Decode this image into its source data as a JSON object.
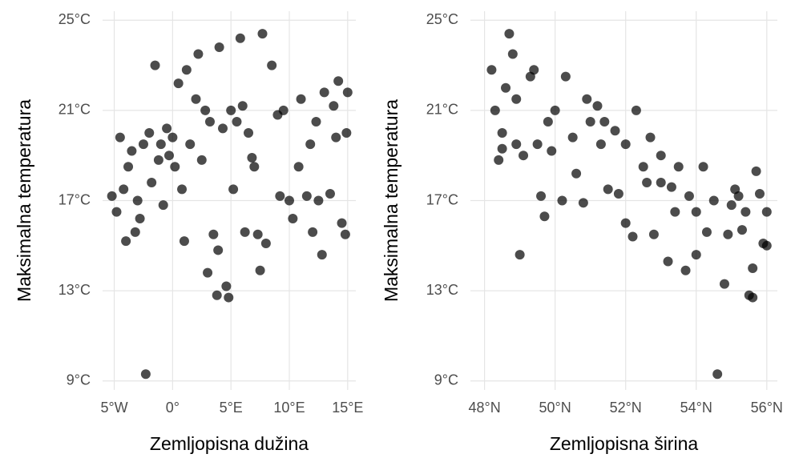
{
  "chart_data": [
    {
      "type": "scatter",
      "x_label": "Zemljopisna dužina",
      "y_label": "Maksimalna temperatura",
      "color": "#000000",
      "alpha": 0.7,
      "grid": true,
      "x": [
        -5.2,
        -4.8,
        -4.5,
        -4.2,
        -4,
        -3.8,
        -3.5,
        -3,
        -2.8,
        -2.5,
        -2.3,
        -2,
        -1.8,
        -1.5,
        -1.2,
        -1,
        -0.8,
        -0.5,
        -0.3,
        0,
        0.2,
        0.5,
        0.8,
        1,
        1.2,
        1.5,
        2,
        2.2,
        2.5,
        3,
        3.2,
        3.5,
        3.8,
        4,
        4.3,
        4.6,
        4.8,
        5,
        5.2,
        5.5,
        5.8,
        6,
        6.2,
        6.5,
        7,
        7.3,
        7.7,
        7.5,
        8,
        8.5,
        9,
        9.2,
        9.5,
        10,
        10.3,
        10.8,
        11,
        11.5,
        12,
        12.3,
        12.8,
        13,
        13.5,
        14,
        14.2,
        14.5,
        14.8,
        14.9,
        15,
        13.8,
        12.5,
        11.8,
        6.8,
        3.9,
        2.8,
        -3.2
      ],
      "y": [
        17.2,
        16.5,
        19.8,
        17.5,
        15.2,
        18.5,
        19.2,
        17,
        16.2,
        19.5,
        9.3,
        20,
        17.8,
        23,
        18.8,
        19.5,
        16.8,
        20.2,
        19,
        19.8,
        18.5,
        22.2,
        17.5,
        15.2,
        22.8,
        19.5,
        21.5,
        23.5,
        18.8,
        13.8,
        20.5,
        15.5,
        12.8,
        23.8,
        20.2,
        13.2,
        12.7,
        21,
        17.5,
        20.5,
        24.2,
        21.2,
        15.6,
        20,
        18.5,
        15.5,
        24.4,
        13.9,
        15.1,
        23,
        20.8,
        17.2,
        21,
        17,
        16.2,
        18.5,
        21.5,
        17.2,
        15.6,
        20.5,
        14.6,
        21.8,
        17.3,
        19.8,
        22.3,
        16,
        15.5,
        20,
        21.8,
        21.2,
        17,
        19.5,
        18.9,
        14.8,
        21,
        15.6
      ],
      "xlim": [
        -6,
        15.7
      ],
      "ylim": [
        8.6,
        25.4
      ],
      "xticks": [
        {
          "value": -5,
          "label": "5°W"
        },
        {
          "value": 0,
          "label": "0°"
        },
        {
          "value": 5,
          "label": "5°E"
        },
        {
          "value": 10,
          "label": "10°E"
        },
        {
          "value": 15,
          "label": "15°E"
        }
      ],
      "yticks": [
        {
          "value": 9,
          "label": "9°C"
        },
        {
          "value": 13,
          "label": "13°C"
        },
        {
          "value": 17,
          "label": "17°C"
        },
        {
          "value": 21,
          "label": "21°C"
        },
        {
          "value": 25,
          "label": "25°C"
        }
      ]
    },
    {
      "type": "scatter",
      "x_label": "Zemljopisna širina",
      "y_label": "Maksimalna temperatura",
      "color": "#000000",
      "alpha": 0.7,
      "grid": true,
      "x": [
        48.2,
        48.3,
        48.4,
        48.5,
        48.6,
        48.7,
        48.8,
        48.9,
        49,
        49.1,
        49.3,
        49.5,
        49.6,
        49.7,
        49.8,
        50,
        50.2,
        50.3,
        50.5,
        50.6,
        50.8,
        51,
        51.2,
        51.3,
        51.5,
        51.7,
        52,
        52,
        52.2,
        52.3,
        52.5,
        52.7,
        52.8,
        53,
        53,
        53.2,
        53.4,
        53.5,
        53.7,
        53.8,
        54,
        54,
        54.2,
        54.3,
        54.5,
        54.6,
        54.8,
        54.9,
        55,
        55.2,
        55.3,
        55.5,
        55.6,
        55.6,
        55.7,
        55.8,
        55.9,
        56,
        56,
        55.4,
        55.1,
        53.3,
        52.6,
        51.8,
        51.4,
        50.9,
        49.9,
        49.4,
        48.9,
        48.5
      ],
      "y": [
        22.8,
        21,
        18.8,
        20,
        22,
        24.4,
        23.5,
        21.5,
        14.6,
        19,
        22.5,
        19.5,
        17.2,
        16.3,
        20.5,
        21,
        17,
        22.5,
        19.8,
        18.2,
        16.9,
        20.5,
        21.2,
        19.5,
        17.5,
        20.1,
        16,
        19.5,
        15.4,
        21,
        18.5,
        19.8,
        15.5,
        17.8,
        19,
        14.3,
        16.5,
        18.5,
        13.9,
        17.2,
        14.6,
        16.5,
        18.5,
        15.6,
        17,
        9.3,
        13.3,
        15.5,
        16.8,
        17.2,
        15.7,
        12.8,
        12.7,
        14,
        18.3,
        17.3,
        15.1,
        16.5,
        15,
        16.5,
        17.5,
        17.6,
        17.8,
        17.3,
        20.5,
        21.5,
        19.2,
        22.8,
        19.5,
        19.3
      ],
      "xlim": [
        47.6,
        56.3
      ],
      "ylim": [
        8.6,
        25.4
      ],
      "xticks": [
        {
          "value": 48,
          "label": "48°N"
        },
        {
          "value": 50,
          "label": "50°N"
        },
        {
          "value": 52,
          "label": "52°N"
        },
        {
          "value": 54,
          "label": "54°N"
        },
        {
          "value": 56,
          "label": "56°N"
        }
      ],
      "yticks": [
        {
          "value": 9,
          "label": "9°C"
        },
        {
          "value": 13,
          "label": "13°C"
        },
        {
          "value": 17,
          "label": "17°C"
        },
        {
          "value": 21,
          "label": "21°C"
        },
        {
          "value": 25,
          "label": "25°C"
        }
      ]
    }
  ]
}
